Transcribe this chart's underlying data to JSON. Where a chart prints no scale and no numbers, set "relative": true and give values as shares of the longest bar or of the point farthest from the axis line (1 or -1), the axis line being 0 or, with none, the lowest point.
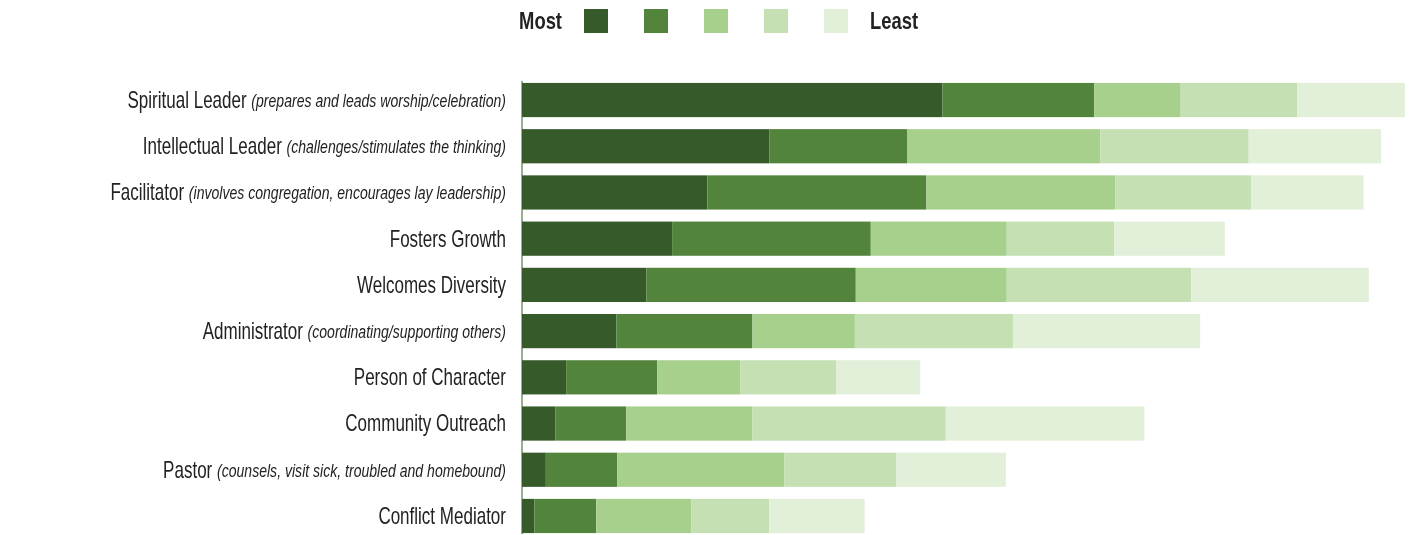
{
  "chart_data": {
    "type": "bar",
    "orientation": "horizontal",
    "stacked": true,
    "relative": true,
    "legend": "top",
    "categories": [
      "Spiritual Leader (prepares and leads worship/celebration)",
      "Intellectual Leader (challenges/stimulates the thinking)",
      "Facilitator (involves congregation, encourages lay leadership)",
      "Fosters Growth",
      "Welcomes Diversity",
      "Administrator (coordinating/supporting others)",
      "Person of Character",
      "Community Outreach",
      "Pastor (counsels, visit sick, troubled and homebound)",
      "Conflict Mediator"
    ],
    "series": [
      {
        "name": "Most",
        "color": "#375a2a",
        "values": [
          0.476,
          0.28,
          0.21,
          0.17,
          0.141,
          0.107,
          0.05,
          0.038,
          0.027,
          0.014
        ]
      },
      {
        "color": "#52843c",
        "values": [
          0.172,
          0.156,
          0.248,
          0.225,
          0.237,
          0.154,
          0.103,
          0.08,
          0.081,
          0.07
        ]
      },
      {
        "color": "#a8d08d",
        "values": [
          0.098,
          0.219,
          0.214,
          0.154,
          0.171,
          0.116,
          0.094,
          0.143,
          0.189,
          0.108
        ]
      },
      {
        "color": "#c5e0b3",
        "values": [
          0.132,
          0.168,
          0.154,
          0.122,
          0.209,
          0.179,
          0.109,
          0.219,
          0.127,
          0.088
        ]
      },
      {
        "name": "Least",
        "color": "#e2efd9",
        "values": [
          0.122,
          0.15,
          0.127,
          0.125,
          0.201,
          0.212,
          0.095,
          0.225,
          0.124,
          0.108
        ]
      }
    ]
  }
}
